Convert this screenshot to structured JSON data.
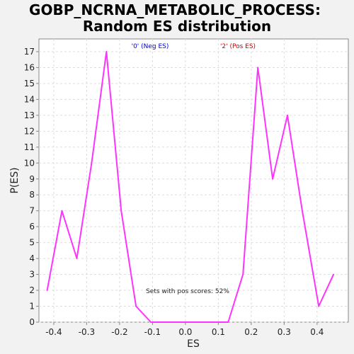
{
  "chart_data": {
    "type": "line",
    "title_line1": "GOBP_NCRNA_METABOLIC_PROCESS:",
    "title_line2": "Random ES distribution",
    "xlabel": "ES",
    "ylabel": "P(ES)",
    "xlim": [
      -0.445,
      0.495
    ],
    "ylim": [
      0,
      17.8
    ],
    "x_ticks": [
      -0.4,
      -0.3,
      -0.2,
      -0.1,
      0.0,
      0.1,
      0.2,
      0.3,
      0.4
    ],
    "x_tick_labels": [
      "-0.4",
      "-0.3",
      "-0.2",
      "-0.1",
      "0.0",
      "0.1",
      "0.2",
      "0.3",
      "0.4"
    ],
    "y_ticks": [
      0,
      1,
      2,
      3,
      4,
      5,
      6,
      7,
      8,
      9,
      10,
      11,
      12,
      13,
      14,
      15,
      16,
      17
    ],
    "grid": true,
    "legend": {
      "neg": {
        "label": "'0' (Neg ES)",
        "color": "#0000cc"
      },
      "pos": {
        "label": "'2' (Pos ES)",
        "color": "#cc0000"
      }
    },
    "annotation": "Sets with pos scores: 52%",
    "line_color": "#ff33ff",
    "series": [
      {
        "x": [
          -0.42,
          -0.375,
          -0.33,
          -0.285,
          -0.24,
          -0.195,
          -0.15,
          -0.105,
          -0.06,
          -0.015,
          0.03,
          0.075,
          0.13,
          0.175,
          0.22,
          0.265,
          0.31,
          0.355,
          0.405,
          0.45
        ],
        "values": [
          2,
          7,
          4,
          10,
          17,
          7,
          1,
          0,
          0,
          0,
          0,
          0,
          0,
          3,
          16,
          9,
          13,
          7,
          1,
          3
        ]
      }
    ]
  }
}
